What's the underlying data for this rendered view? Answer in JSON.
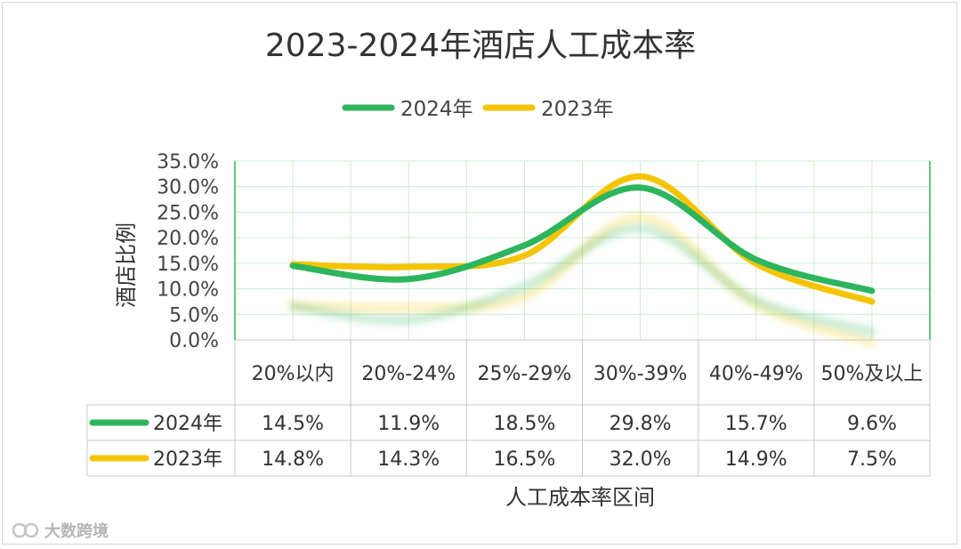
{
  "chart_data": {
    "type": "line",
    "title": "2023-2024年酒店人工成本率",
    "xlabel": "人工成本率区间",
    "ylabel": "酒店比例",
    "categories": [
      "20%以内",
      "20%-24%",
      "25%-29%",
      "30%-39%",
      "40%-49%",
      "50%及以上"
    ],
    "y_ticks": [
      "0.0%",
      "5.0%",
      "10.0%",
      "15.0%",
      "20.0%",
      "25.0%",
      "30.0%",
      "35.0%"
    ],
    "ylim": [
      0,
      35
    ],
    "grid": true,
    "legend_position": "top",
    "series": [
      {
        "name": "2024年",
        "color": "#2db55d",
        "values": [
          14.5,
          11.9,
          18.5,
          29.8,
          15.7,
          9.6
        ],
        "labels": [
          "14.5%",
          "11.9%",
          "18.5%",
          "29.8%",
          "15.7%",
          "9.6%"
        ]
      },
      {
        "name": "2023年",
        "color": "#f5c400",
        "values": [
          14.8,
          14.3,
          16.5,
          32.0,
          14.9,
          7.5
        ],
        "labels": [
          "14.8%",
          "14.3%",
          "16.5%",
          "32.0%",
          "14.9%",
          "7.5%"
        ]
      }
    ]
  },
  "watermark": "大数跨境"
}
